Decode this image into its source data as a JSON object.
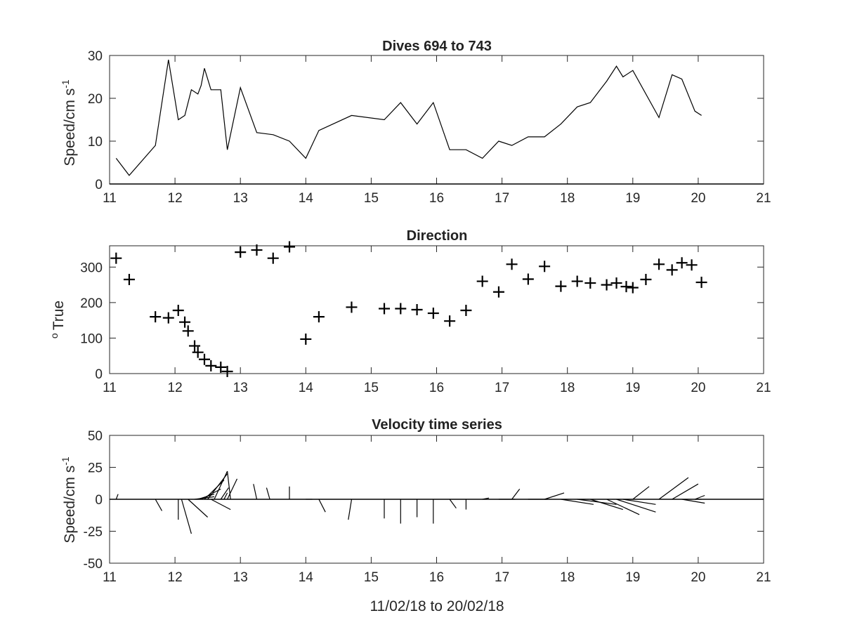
{
  "chart_data": [
    {
      "type": "line",
      "title": "Dives 694 to 743",
      "ylabel": "Speed/cm s",
      "ylabel_sup": "-1",
      "xlim": [
        11,
        21
      ],
      "ylim": [
        0,
        30
      ],
      "xticks": [
        11,
        12,
        13,
        14,
        15,
        16,
        17,
        18,
        19,
        20,
        21
      ],
      "yticks": [
        0,
        10,
        20,
        30
      ],
      "grid": false,
      "series": [
        {
          "x": [
            11.1,
            11.3,
            11.7,
            11.9,
            12.05,
            12.15,
            12.25,
            12.35,
            12.4,
            12.45,
            12.55,
            12.7,
            12.8,
            13.0,
            13.25,
            13.5,
            13.75,
            14.0,
            14.2,
            14.7,
            15.2,
            15.45,
            15.7,
            15.95,
            16.2,
            16.45,
            16.7,
            16.95,
            17.15,
            17.4,
            17.65,
            17.9,
            18.15,
            18.35,
            18.6,
            18.75,
            18.85,
            19.0,
            19.4,
            19.6,
            19.75,
            19.95,
            20.05
          ],
          "y": [
            6,
            2,
            9,
            29,
            15,
            16,
            22,
            21,
            23,
            27,
            22,
            22,
            8,
            22.5,
            12,
            11.5,
            10,
            6,
            12.5,
            16,
            15,
            19,
            14,
            19,
            8,
            8,
            6,
            10,
            9,
            11,
            11,
            14,
            18,
            19,
            24,
            27.5,
            25,
            26.5,
            15.5,
            25.5,
            24.5,
            17,
            16
          ]
        }
      ]
    },
    {
      "type": "scatter",
      "title": "Direction",
      "ylabel": "True",
      "ylabel_sup": "o",
      "xlim": [
        11,
        21
      ],
      "ylim": [
        0,
        360
      ],
      "xticks": [
        11,
        12,
        13,
        14,
        15,
        16,
        17,
        18,
        19,
        20,
        21
      ],
      "yticks": [
        0,
        100,
        200,
        300
      ],
      "grid": false,
      "series": [
        {
          "marker": "+",
          "x": [
            11.1,
            11.3,
            11.7,
            11.9,
            12.05,
            12.15,
            12.2,
            12.3,
            12.35,
            12.45,
            12.55,
            12.7,
            12.8,
            13.0,
            13.25,
            13.5,
            13.75,
            14.0,
            14.2,
            14.7,
            15.2,
            15.45,
            15.7,
            15.95,
            16.2,
            16.45,
            16.7,
            16.95,
            17.15,
            17.4,
            17.65,
            17.9,
            18.15,
            18.35,
            18.6,
            18.75,
            18.9,
            19.0,
            19.2,
            19.4,
            19.6,
            19.75,
            19.9,
            20.05
          ],
          "y": [
            325,
            265,
            160,
            157,
            178,
            145,
            120,
            78,
            60,
            40,
            22,
            18,
            6,
            342,
            348,
            325,
            357,
            97,
            160,
            187,
            183,
            183,
            180,
            170,
            148,
            178,
            260,
            230,
            308,
            266,
            302,
            246,
            260,
            255,
            250,
            255,
            245,
            242,
            265,
            308,
            292,
            312,
            306,
            257
          ]
        }
      ]
    },
    {
      "type": "line",
      "subtype": "stick-vector",
      "title": "Velocity time series",
      "ylabel": "Speed/cm s",
      "ylabel_sup": "-1",
      "xlabel": "11/02/18 to 20/02/18",
      "xlim": [
        11,
        21
      ],
      "ylim": [
        -50,
        50
      ],
      "xticks": [
        11,
        12,
        13,
        14,
        15,
        16,
        17,
        18,
        19,
        20,
        21
      ],
      "yticks": [
        -50,
        -25,
        0,
        25,
        50
      ],
      "yticklabels": [
        "-50",
        "-25",
        "0",
        "25",
        "50"
      ],
      "grid": false,
      "vectors_note_units": "u,v components in cm/s; x in days",
      "vectors": [
        {
          "x": 11.1,
          "u": 0.03,
          "v": 4
        },
        {
          "x": 11.7,
          "u": 0.1,
          "v": -9
        },
        {
          "x": 12.05,
          "u": 0.0,
          "v": -16
        },
        {
          "x": 12.1,
          "u": 0.15,
          "v": -27
        },
        {
          "x": 12.2,
          "u": 0.3,
          "v": -14
        },
        {
          "x": 12.3,
          "u": 0.3,
          "v": 2
        },
        {
          "x": 12.35,
          "u": 0.25,
          "v": 4
        },
        {
          "x": 12.4,
          "u": 0.3,
          "v": 8
        },
        {
          "x": 12.45,
          "u": 0.3,
          "v": 15
        },
        {
          "x": 12.5,
          "u": 0.3,
          "v": 20
        },
        {
          "x": 12.55,
          "u": 0.3,
          "v": -8
        },
        {
          "x": 12.6,
          "u": 0.2,
          "v": 22
        },
        {
          "x": 12.7,
          "u": 0.12,
          "v": 9
        },
        {
          "x": 12.75,
          "u": 0.05,
          "v": 5
        },
        {
          "x": 12.8,
          "u": 0.15,
          "v": 16
        },
        {
          "x": 12.85,
          "u": -0.05,
          "v": 22
        },
        {
          "x": 13.25,
          "u": -0.05,
          "v": 12
        },
        {
          "x": 13.45,
          "u": -0.05,
          "v": 9
        },
        {
          "x": 13.75,
          "u": 0.0,
          "v": 10
        },
        {
          "x": 14.0,
          "u": 0.1,
          "v": 0
        },
        {
          "x": 14.2,
          "u": 0.1,
          "v": -10
        },
        {
          "x": 14.7,
          "u": -0.05,
          "v": -16
        },
        {
          "x": 15.2,
          "u": 0.0,
          "v": -15
        },
        {
          "x": 15.45,
          "u": 0.0,
          "v": -19
        },
        {
          "x": 15.7,
          "u": 0.0,
          "v": -14
        },
        {
          "x": 15.95,
          "u": 0.0,
          "v": -19
        },
        {
          "x": 16.2,
          "u": 0.1,
          "v": -7
        },
        {
          "x": 16.45,
          "u": 0.0,
          "v": -8
        },
        {
          "x": 16.7,
          "u": 0.1,
          "v": 1
        },
        {
          "x": 16.95,
          "u": 0.25,
          "v": 0
        },
        {
          "x": 17.15,
          "u": 0.12,
          "v": 8
        },
        {
          "x": 17.4,
          "u": 0.3,
          "v": 0
        },
        {
          "x": 17.65,
          "u": 0.3,
          "v": 5
        },
        {
          "x": 17.9,
          "u": 0.5,
          "v": -4
        },
        {
          "x": 18.15,
          "u": 0.6,
          "v": -4
        },
        {
          "x": 18.35,
          "u": 0.5,
          "v": -8
        },
        {
          "x": 18.6,
          "u": 0.5,
          "v": -12
        },
        {
          "x": 18.75,
          "u": 0.6,
          "v": -10
        },
        {
          "x": 18.85,
          "u": 0.5,
          "v": -4
        },
        {
          "x": 19.0,
          "u": 0.25,
          "v": 10
        },
        {
          "x": 19.4,
          "u": 0.45,
          "v": 17
        },
        {
          "x": 19.6,
          "u": 0.4,
          "v": 12
        },
        {
          "x": 19.75,
          "u": 0.35,
          "v": -3
        },
        {
          "x": 19.95,
          "u": 0.15,
          "v": 3
        },
        {
          "x": 20.05,
          "u": -0.1,
          "v": 0
        }
      ]
    }
  ]
}
